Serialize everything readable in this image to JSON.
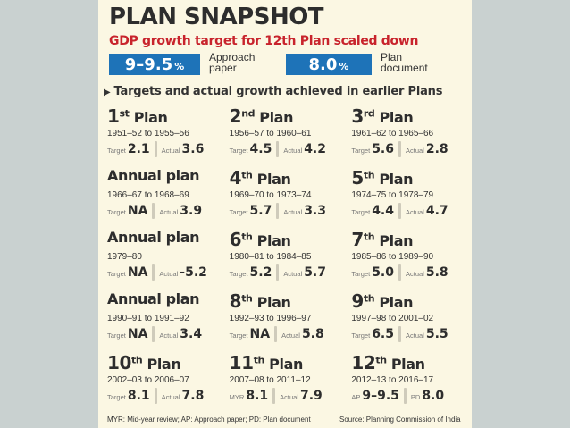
{
  "header": {
    "title": "PLAN SNAPSHOT",
    "subtitle": "GDP growth target for 12th Plan scaled down"
  },
  "pills": [
    {
      "value": "9–9.5",
      "unit": "%",
      "note_line1": "Approach",
      "note_line2": "paper"
    },
    {
      "value": "8.0",
      "unit": "%",
      "note_line1": "Plan",
      "note_line2": "document"
    }
  ],
  "section_title": "Targets and actual growth achieved in earlier Plans",
  "plans": [
    {
      "num": "1",
      "sup": "st",
      "name": "Plan",
      "years": "1951–52 to 1955–56",
      "target_label": "Target",
      "target": "2.1",
      "actual_label": "Actual",
      "actual": "3.6"
    },
    {
      "num": "2",
      "sup": "nd",
      "name": "Plan",
      "years": "1956–57 to 1960–61",
      "target_label": "Target",
      "target": "4.5",
      "actual_label": "Actual",
      "actual": "4.2"
    },
    {
      "num": "3",
      "sup": "rd",
      "name": "Plan",
      "years": "1961–62 to 1965–66",
      "target_label": "Target",
      "target": "5.6",
      "actual_label": "Actual",
      "actual": "2.8"
    },
    {
      "num": "",
      "sup": "",
      "name": "Annual plan",
      "years": "1966–67 to 1968–69",
      "target_label": "Target",
      "target": "NA",
      "actual_label": "Actual",
      "actual": "3.9"
    },
    {
      "num": "4",
      "sup": "th",
      "name": "Plan",
      "years": "1969–70 to 1973–74",
      "target_label": "Target",
      "target": "5.7",
      "actual_label": "Actual",
      "actual": "3.3"
    },
    {
      "num": "5",
      "sup": "th",
      "name": "Plan",
      "years": "1974–75 to 1978–79",
      "target_label": "Target",
      "target": "4.4",
      "actual_label": "Actual",
      "actual": "4.7"
    },
    {
      "num": "",
      "sup": "",
      "name": "Annual plan",
      "years": "1979–80",
      "target_label": "Target",
      "target": "NA",
      "actual_label": "Actual",
      "actual": "-5.2"
    },
    {
      "num": "6",
      "sup": "th",
      "name": "Plan",
      "years": "1980–81 to 1984–85",
      "target_label": "Target",
      "target": "5.2",
      "actual_label": "Actual",
      "actual": "5.7"
    },
    {
      "num": "7",
      "sup": "th",
      "name": "Plan",
      "years": "1985–86 to 1989–90",
      "target_label": "Target",
      "target": "5.0",
      "actual_label": "Actual",
      "actual": "5.8"
    },
    {
      "num": "",
      "sup": "",
      "name": "Annual plan",
      "years": "1990–91 to 1991–92",
      "target_label": "Target",
      "target": "NA",
      "actual_label": "Actual",
      "actual": "3.4"
    },
    {
      "num": "8",
      "sup": "th",
      "name": "Plan",
      "years": "1992–93 to 1996–97",
      "target_label": "Target",
      "target": "NA",
      "actual_label": "Actual",
      "actual": "5.8"
    },
    {
      "num": "9",
      "sup": "th",
      "name": "Plan",
      "years": "1997–98 to 2001–02",
      "target_label": "Target",
      "target": "6.5",
      "actual_label": "Actual",
      "actual": "5.5"
    },
    {
      "num": "10",
      "sup": "th",
      "name": "Plan",
      "years": "2002–03 to 2006–07",
      "target_label": "Target",
      "target": "8.1",
      "actual_label": "Actual",
      "actual": "7.8"
    },
    {
      "num": "11",
      "sup": "th",
      "name": "Plan",
      "years": "2007–08 to 2011–12",
      "target_label": "MYR",
      "target": "8.1",
      "actual_label": "Actual",
      "actual": "7.9"
    },
    {
      "num": "12",
      "sup": "th",
      "name": "Plan",
      "years": "2012–13 to 2016–17",
      "target_label": "AP",
      "target": "9–9.5",
      "actual_label": "PD",
      "actual": "8.0"
    }
  ],
  "footer": {
    "abbreviations": "MYR: Mid-year review; AP: Approach paper; PD: Plan document",
    "source": "Source: Planning Commission of India"
  },
  "colors": {
    "accent_blue": "#1e73b8",
    "subtitle_red": "#c8232c",
    "card_bg": "#fbf7e3",
    "backdrop": "#c9d1d0"
  }
}
